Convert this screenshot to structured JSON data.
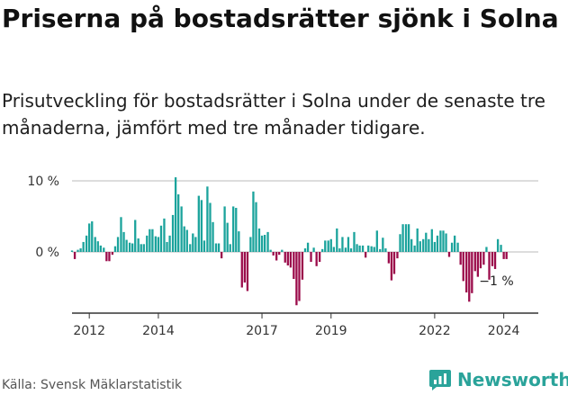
{
  "title": "Priserna på bostadsrätter sjönk i Solna",
  "subtitle": "Prisutveckling för bostadsrätter i Solna under de senaste tre månaderna, jämfört med tre månader tidigare.",
  "source": "Källa: Svensk Mäklarstatistik",
  "brand": {
    "name": "Newsworthy",
    "icon": "newsworthy-logo-icon"
  },
  "colors": {
    "positive": "#1ba39c",
    "negative": "#9b0b4a",
    "axis": "#333333",
    "grid": "#bbbbbb"
  },
  "chart_data": {
    "type": "bar",
    "title": "Priserna på bostadsrätter sjönk i Solna",
    "xlabel": "",
    "ylabel": "",
    "y_unit": "%",
    "ylim": [
      -7.5,
      10.5
    ],
    "ytick_labels": [
      {
        "value": 10,
        "label": "10 %"
      },
      {
        "value": 0,
        "label": "0 %"
      }
    ],
    "x_start": 2011.5,
    "x_end": 2025.0,
    "xtick_labels": [
      {
        "value": 2012,
        "label": "2012"
      },
      {
        "value": 2014,
        "label": "2014"
      },
      {
        "value": 2017,
        "label": "2017"
      },
      {
        "value": 2019,
        "label": "2019"
      },
      {
        "value": 2022,
        "label": "2022"
      },
      {
        "value": 2024,
        "label": "2024"
      }
    ],
    "x": [
      2011.5,
      2011.58,
      2011.67,
      2011.75,
      2011.83,
      2011.92,
      2012.0,
      2012.08,
      2012.17,
      2012.25,
      2012.33,
      2012.42,
      2012.5,
      2012.58,
      2012.67,
      2012.75,
      2012.83,
      2012.92,
      2013.0,
      2013.08,
      2013.17,
      2013.25,
      2013.33,
      2013.42,
      2013.5,
      2013.58,
      2013.67,
      2013.75,
      2013.83,
      2013.92,
      2014.0,
      2014.08,
      2014.17,
      2014.25,
      2014.33,
      2014.42,
      2014.5,
      2014.58,
      2014.67,
      2014.75,
      2014.83,
      2014.92,
      2015.0,
      2015.08,
      2015.17,
      2015.25,
      2015.33,
      2015.42,
      2015.5,
      2015.58,
      2015.67,
      2015.75,
      2015.83,
      2015.92,
      2016.0,
      2016.08,
      2016.17,
      2016.25,
      2016.33,
      2016.42,
      2016.5,
      2016.58,
      2016.67,
      2016.75,
      2016.83,
      2016.92,
      2017.0,
      2017.08,
      2017.17,
      2017.25,
      2017.33,
      2017.42,
      2017.5,
      2017.58,
      2017.67,
      2017.75,
      2017.83,
      2017.92,
      2018.0,
      2018.08,
      2018.17,
      2018.25,
      2018.33,
      2018.42,
      2018.5,
      2018.58,
      2018.67,
      2018.75,
      2018.83,
      2018.92,
      2019.0,
      2019.08,
      2019.17,
      2019.25,
      2019.33,
      2019.42,
      2019.5,
      2019.58,
      2019.67,
      2019.75,
      2019.83,
      2019.92,
      2020.0,
      2020.08,
      2020.17,
      2020.25,
      2020.33,
      2020.42,
      2020.5,
      2020.58,
      2020.67,
      2020.75,
      2020.83,
      2020.92,
      2021.0,
      2021.08,
      2021.17,
      2021.25,
      2021.33,
      2021.42,
      2021.5,
      2021.58,
      2021.67,
      2021.75,
      2021.83,
      2021.92,
      2022.0,
      2022.08,
      2022.17,
      2022.25,
      2022.33,
      2022.42,
      2022.5,
      2022.58,
      2022.67,
      2022.75,
      2022.83,
      2022.92,
      2023.0,
      2023.08,
      2023.17,
      2023.25,
      2023.33,
      2023.42,
      2023.5,
      2023.58,
      2023.67,
      2023.75,
      2023.83,
      2023.92,
      2024.0,
      2024.08
    ],
    "values": [
      0.2,
      -1.0,
      0.3,
      0.5,
      1.4,
      2.3,
      4.0,
      4.3,
      2.1,
      1.5,
      0.9,
      0.6,
      -1.3,
      -1.3,
      -0.4,
      0.8,
      2.1,
      4.9,
      2.8,
      1.7,
      1.3,
      1.2,
      4.5,
      1.9,
      1.1,
      1.1,
      2.3,
      3.2,
      3.2,
      2.2,
      2.1,
      3.7,
      4.7,
      1.4,
      2.3,
      5.2,
      10.5,
      8.1,
      6.4,
      3.6,
      3.1,
      1.1,
      2.6,
      2.1,
      7.9,
      7.3,
      1.6,
      9.2,
      6.9,
      4.2,
      1.2,
      1.2,
      -0.9,
      6.4,
      4.1,
      1.1,
      6.4,
      6.2,
      2.9,
      -5.0,
      -4.3,
      -5.5,
      2.1,
      8.5,
      7.0,
      3.3,
      2.3,
      2.4,
      2.8,
      0.3,
      -0.5,
      -1.2,
      -0.4,
      0.3,
      -1.5,
      -1.9,
      -2.2,
      -3.8,
      -7.5,
      -6.9,
      -3.9,
      0.5,
      1.3,
      -1.4,
      0.6,
      -2.0,
      -1.4,
      0.4,
      1.6,
      1.6,
      1.8,
      0.7,
      3.3,
      0.5,
      2.1,
      0.6,
      2.1,
      0.5,
      2.8,
      1.1,
      0.9,
      0.9,
      -0.8,
      0.9,
      0.8,
      0.7,
      3.0,
      0.4,
      2.0,
      0.5,
      -1.6,
      -4.0,
      -3.1,
      -0.9,
      2.5,
      3.9,
      3.9,
      3.9,
      1.8,
      0.9,
      3.3,
      1.5,
      1.8,
      2.7,
      1.8,
      3.2,
      1.4,
      2.3,
      3.0,
      3.0,
      2.6,
      -0.7,
      1.3,
      2.3,
      1.3,
      -1.8,
      -4.1,
      -5.7,
      -7.0,
      -5.8,
      -2.7,
      -3.5,
      -2.3,
      -1.8,
      0.7,
      -3.9,
      -2.0,
      -2.4,
      1.8,
      1.0,
      -1.0,
      -1.0
    ],
    "last_value_label": "−1 %"
  }
}
